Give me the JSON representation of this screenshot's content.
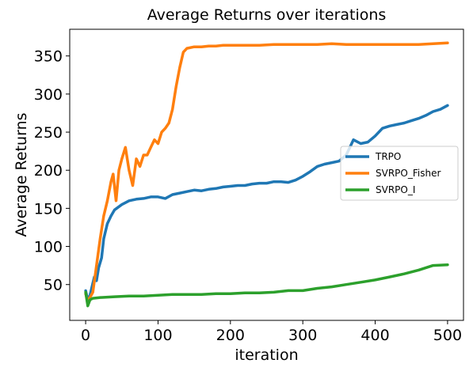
{
  "chart_data": {
    "type": "line",
    "title": "Average Returns  over iterations",
    "xlabel": "iteration",
    "ylabel": "Average Returns",
    "xlim": [
      -22,
      522
    ],
    "ylim": [
      3,
      385
    ],
    "xticks": [
      0,
      100,
      200,
      300,
      400,
      500
    ],
    "yticks": [
      50,
      100,
      150,
      200,
      250,
      300,
      350
    ],
    "grid": false,
    "legend_position": "center-right",
    "series": [
      {
        "name": "TRPO",
        "color": "#1f77b4",
        "x": [
          0,
          3,
          6,
          9,
          12,
          15,
          18,
          22,
          25,
          30,
          35,
          40,
          50,
          60,
          70,
          80,
          90,
          100,
          110,
          120,
          130,
          140,
          150,
          160,
          170,
          180,
          190,
          200,
          210,
          220,
          230,
          240,
          250,
          260,
          270,
          280,
          290,
          300,
          310,
          320,
          330,
          340,
          350,
          360,
          370,
          380,
          390,
          400,
          410,
          420,
          430,
          440,
          450,
          460,
          470,
          480,
          490,
          500
        ],
        "y": [
          42,
          30,
          36,
          48,
          60,
          55,
          72,
          85,
          110,
          130,
          140,
          148,
          155,
          160,
          162,
          163,
          165,
          165,
          163,
          168,
          170,
          172,
          174,
          173,
          175,
          176,
          178,
          179,
          180,
          180,
          182,
          183,
          183,
          185,
          185,
          184,
          187,
          192,
          198,
          205,
          208,
          210,
          212,
          220,
          240,
          235,
          237,
          245,
          255,
          258,
          260,
          262,
          265,
          268,
          272,
          277,
          280,
          285
        ]
      },
      {
        "name": "SVRPO_Fisher",
        "color": "#ff7f0e",
        "x": [
          0,
          3,
          6,
          10,
          15,
          20,
          25,
          30,
          35,
          38,
          42,
          46,
          50,
          55,
          60,
          65,
          70,
          75,
          80,
          85,
          90,
          95,
          100,
          105,
          110,
          115,
          120,
          125,
          130,
          135,
          140,
          150,
          160,
          170,
          180,
          190,
          200,
          220,
          240,
          260,
          280,
          300,
          320,
          340,
          360,
          380,
          400,
          420,
          440,
          460,
          480,
          500
        ],
        "y": [
          38,
          28,
          33,
          40,
          75,
          110,
          140,
          160,
          185,
          195,
          160,
          200,
          215,
          230,
          200,
          180,
          215,
          205,
          220,
          220,
          230,
          240,
          235,
          250,
          255,
          262,
          280,
          310,
          335,
          355,
          360,
          362,
          362,
          363,
          363,
          364,
          364,
          364,
          364,
          365,
          365,
          365,
          365,
          366,
          365,
          365,
          365,
          365,
          365,
          365,
          366,
          367
        ]
      },
      {
        "name": "SVRPO_I",
        "color": "#2ca02c",
        "x": [
          0,
          3,
          6,
          10,
          20,
          40,
          60,
          80,
          100,
          120,
          140,
          160,
          180,
          200,
          220,
          240,
          260,
          280,
          300,
          320,
          340,
          360,
          380,
          400,
          420,
          440,
          460,
          480,
          500
        ],
        "y": [
          40,
          22,
          30,
          32,
          33,
          34,
          35,
          35,
          36,
          37,
          37,
          37,
          38,
          38,
          39,
          39,
          40,
          42,
          42,
          45,
          47,
          50,
          53,
          56,
          60,
          64,
          69,
          75,
          76
        ]
      }
    ]
  }
}
